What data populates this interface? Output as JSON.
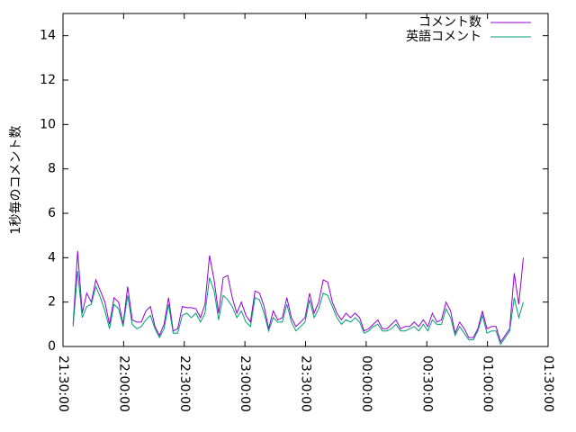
{
  "chart_data": {
    "type": "line",
    "ylabel": "1秒毎のコメント数",
    "x": [
      "21:35:00",
      "21:37:15",
      "21:39:30",
      "21:41:45",
      "21:44:00",
      "21:46:15",
      "21:48:30",
      "21:50:45",
      "21:53:00",
      "21:55:15",
      "21:57:30",
      "21:59:45",
      "22:02:00",
      "22:04:15",
      "22:06:30",
      "22:08:45",
      "22:11:00",
      "22:13:15",
      "22:15:30",
      "22:17:45",
      "22:20:00",
      "22:22:15",
      "22:24:30",
      "22:26:45",
      "22:29:00",
      "22:31:15",
      "22:33:30",
      "22:35:45",
      "22:38:00",
      "22:40:15",
      "22:42:30",
      "22:44:45",
      "22:47:00",
      "22:49:15",
      "22:51:30",
      "22:53:45",
      "22:56:00",
      "22:58:15",
      "23:00:30",
      "23:02:45",
      "23:05:00",
      "23:07:15",
      "23:09:30",
      "23:11:45",
      "23:14:00",
      "23:16:15",
      "23:18:30",
      "23:20:45",
      "23:23:00",
      "23:25:15",
      "23:27:30",
      "23:29:45",
      "23:32:00",
      "23:34:15",
      "23:36:30",
      "23:38:45",
      "23:41:00",
      "23:43:15",
      "23:45:30",
      "23:47:45",
      "23:50:00",
      "23:52:15",
      "23:54:30",
      "23:56:45",
      "23:59:00",
      "00:01:15",
      "00:03:30",
      "00:05:45",
      "00:08:00",
      "00:10:15",
      "00:12:30",
      "00:14:45",
      "00:17:00",
      "00:19:15",
      "00:21:30",
      "00:23:45",
      "00:26:00",
      "00:28:15",
      "00:30:30",
      "00:32:45",
      "00:35:00",
      "00:37:15",
      "00:39:30",
      "00:41:45",
      "00:44:00",
      "00:46:15",
      "00:48:30",
      "00:50:45",
      "00:53:00",
      "00:55:15",
      "00:57:30",
      "00:59:45",
      "01:02:00",
      "01:04:15",
      "01:06:30",
      "01:08:45",
      "01:11:00",
      "01:13:15",
      "01:15:30",
      "01:17:45"
    ],
    "series": [
      {
        "name": "コメント数",
        "color": "#9400d3",
        "values": [
          1.0,
          4.3,
          1.5,
          2.4,
          2.0,
          3.0,
          2.5,
          2.0,
          1.0,
          2.2,
          2.0,
          1.0,
          2.7,
          1.2,
          1.1,
          1.1,
          1.6,
          1.8,
          0.9,
          0.5,
          1.0,
          2.2,
          0.7,
          0.8,
          1.8,
          1.75,
          1.75,
          1.7,
          1.3,
          1.9,
          4.1,
          3.0,
          1.5,
          3.1,
          3.2,
          2.2,
          1.5,
          2.0,
          1.4,
          1.1,
          2.5,
          2.4,
          1.8,
          0.8,
          1.6,
          1.2,
          1.3,
          2.2,
          1.3,
          0.9,
          1.1,
          1.3,
          2.4,
          1.5,
          2.0,
          3.0,
          2.9,
          2.0,
          1.5,
          1.2,
          1.5,
          1.3,
          1.5,
          1.3,
          0.7,
          0.8,
          1.0,
          1.2,
          0.8,
          0.8,
          1.0,
          1.2,
          0.8,
          0.9,
          0.9,
          1.1,
          0.9,
          1.2,
          0.9,
          1.5,
          1.1,
          1.2,
          2.0,
          1.6,
          0.6,
          1.1,
          0.8,
          0.4,
          0.4,
          0.8,
          1.6,
          0.8,
          0.9,
          0.9,
          0.2,
          0.5,
          0.8,
          3.3,
          1.9,
          4.0
        ]
      },
      {
        "name": "英語コメント",
        "color": "#009e73",
        "values": [
          0.9,
          3.4,
          1.3,
          1.8,
          1.9,
          2.7,
          2.2,
          1.6,
          0.8,
          1.9,
          1.7,
          0.9,
          2.3,
          1.0,
          0.8,
          0.9,
          1.2,
          1.4,
          0.8,
          0.4,
          0.8,
          1.9,
          0.6,
          0.6,
          1.4,
          1.5,
          1.3,
          1.5,
          1.1,
          1.5,
          3.1,
          2.5,
          1.2,
          2.3,
          2.1,
          1.8,
          1.3,
          1.6,
          1.1,
          0.9,
          2.2,
          2.1,
          1.5,
          0.7,
          1.3,
          1.1,
          1.1,
          1.9,
          1.1,
          0.7,
          0.9,
          1.1,
          2.1,
          1.3,
          1.7,
          2.4,
          2.3,
          1.8,
          1.3,
          1.0,
          1.2,
          1.1,
          1.3,
          1.1,
          0.6,
          0.7,
          0.9,
          1.0,
          0.7,
          0.7,
          0.8,
          1.0,
          0.7,
          0.7,
          0.8,
          0.9,
          0.7,
          1.0,
          0.7,
          1.2,
          1.0,
          1.0,
          1.7,
          1.3,
          0.5,
          0.9,
          0.6,
          0.3,
          0.3,
          0.7,
          1.4,
          0.6,
          0.7,
          0.7,
          0.1,
          0.4,
          0.7,
          2.2,
          1.3,
          2.0
        ]
      }
    ],
    "xlim": [
      "21:30:00",
      "01:30:00"
    ],
    "xticks": [
      "21:30:00",
      "22:00:00",
      "22:30:00",
      "23:00:00",
      "23:30:00",
      "00:00:00",
      "00:30:00",
      "01:00:00",
      "01:30:00"
    ],
    "ylim": [
      0,
      15
    ],
    "yticks": [
      0,
      2,
      4,
      6,
      8,
      10,
      12,
      14
    ],
    "legend": "top-right"
  }
}
